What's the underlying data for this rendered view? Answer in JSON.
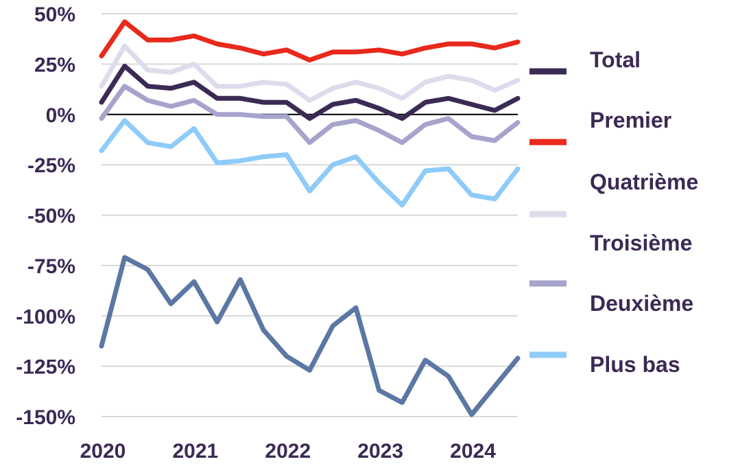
{
  "chart_data": {
    "type": "line",
    "x": [
      2020.0,
      2020.25,
      2020.5,
      2020.75,
      2021.0,
      2021.25,
      2021.5,
      2021.75,
      2022.0,
      2022.25,
      2022.5,
      2022.75,
      2023.0,
      2023.25,
      2023.5,
      2023.75,
      2024.0,
      2024.25,
      2024.5
    ],
    "x_ticks": [
      {
        "value": 2020,
        "label": "2020"
      },
      {
        "value": 2021,
        "label": "2021"
      },
      {
        "value": 2022,
        "label": "2022"
      },
      {
        "value": 2023,
        "label": "2023"
      },
      {
        "value": 2024,
        "label": "2024"
      }
    ],
    "y_ticks": [
      {
        "value": 50,
        "label": "50%"
      },
      {
        "value": 25,
        "label": "25%"
      },
      {
        "value": 0,
        "label": "0%"
      },
      {
        "value": -25,
        "label": "-25%"
      },
      {
        "value": -50,
        "label": "-50%"
      },
      {
        "value": -75,
        "label": "-75%"
      },
      {
        "value": -100,
        "label": "-100%"
      },
      {
        "value": -125,
        "label": "-125%"
      },
      {
        "value": -150,
        "label": "-150%"
      }
    ],
    "ylim": [
      -150,
      50
    ],
    "xlim": [
      2020,
      2024.5
    ],
    "grid": true,
    "zero_line": true,
    "legend_position": "right",
    "series": [
      {
        "name": "Total",
        "color": "#3b2a54",
        "values": [
          6,
          24,
          14,
          13,
          16,
          8,
          8,
          6,
          6,
          -2,
          5,
          7,
          3,
          -2,
          6,
          8,
          5,
          2,
          8
        ]
      },
      {
        "name": "Premier",
        "color": "#e8291c",
        "values": [
          29,
          46,
          37,
          37,
          39,
          35,
          33,
          30,
          32,
          27,
          31,
          31,
          32,
          30,
          33,
          35,
          35,
          33,
          36
        ]
      },
      {
        "name": "Quatrième",
        "color": "#dcdcec",
        "values": [
          14,
          34,
          22,
          21,
          25,
          14,
          14,
          16,
          15,
          7,
          13,
          16,
          13,
          8,
          16,
          19,
          17,
          12,
          17
        ]
      },
      {
        "name": "Troisième",
        "color": "#5c77a3",
        "values": [
          -115,
          -71,
          -77,
          -94,
          -83,
          -103,
          -82,
          -107,
          -120,
          -127,
          -105,
          -96,
          -137,
          -143,
          -122,
          -130,
          -149,
          -135,
          -121
        ]
      },
      {
        "name": "Deuxième",
        "color": "#a6a3cc",
        "values": [
          -2,
          14,
          7,
          4,
          7,
          0,
          0,
          -1,
          -1,
          -14,
          -5,
          -3,
          -8,
          -14,
          -5,
          -2,
          -11,
          -13,
          -4
        ]
      },
      {
        "name": "Plus bas",
        "color": "#8ecbf8",
        "values": [
          -18,
          -3,
          -14,
          -16,
          -7,
          -24,
          -23,
          -21,
          -20,
          -38,
          -25,
          -21,
          -34,
          -45,
          -28,
          -27,
          -40,
          -42,
          -27
        ]
      }
    ]
  },
  "legend": {
    "items": [
      {
        "label": "Total",
        "color": "#3b2a54"
      },
      {
        "label": "Premier",
        "color": "#e8291c"
      },
      {
        "label": "Quatrième",
        "color": "#dcdcec"
      },
      {
        "label": "Troisième",
        "color": "#5c77a3"
      },
      {
        "label": "Deuxième",
        "color": "#a6a3cc"
      },
      {
        "label": "Plus bas",
        "color": "#8ecbf8"
      }
    ]
  }
}
